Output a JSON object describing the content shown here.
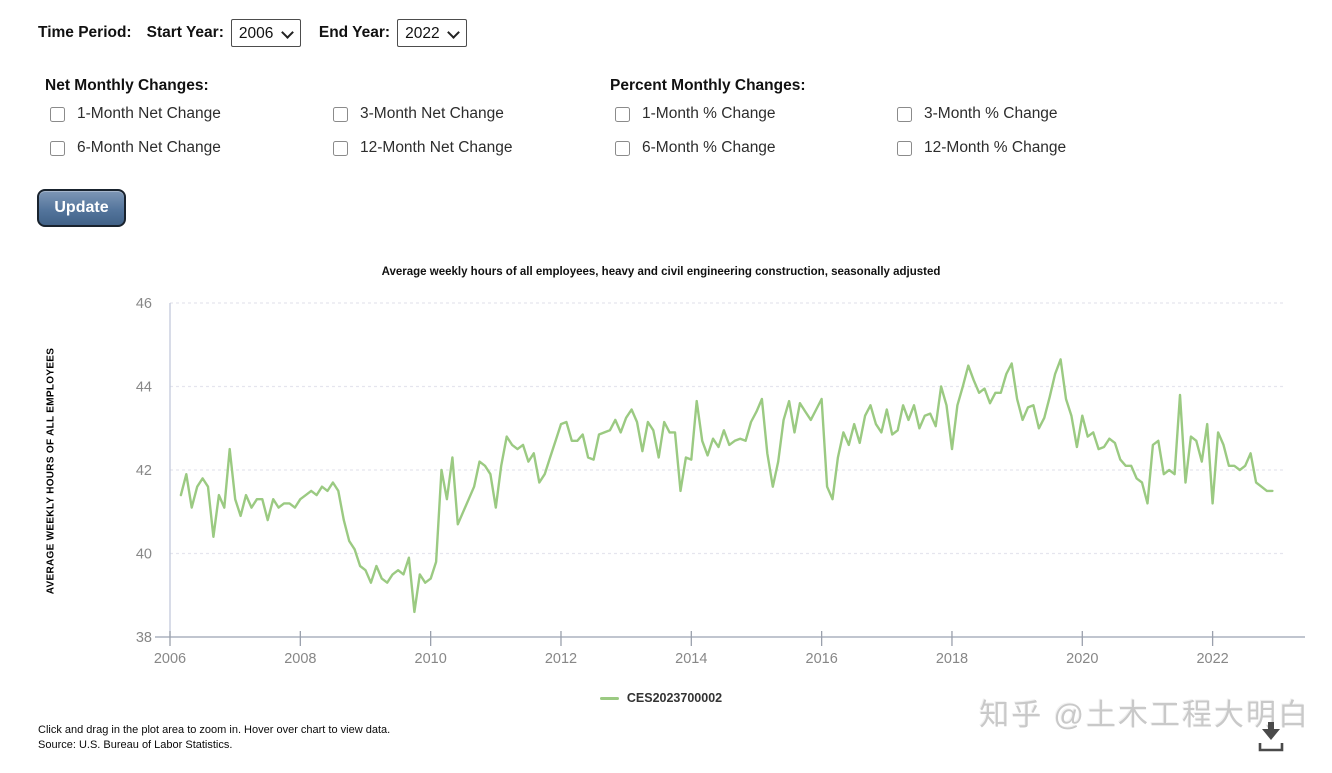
{
  "controls": {
    "time_period_label": "Time Period:",
    "start_year_label": "Start Year:",
    "start_year_value": "2006",
    "end_year_label": "End Year:",
    "end_year_value": "2022",
    "net_section_label": "Net Monthly Changes:",
    "percent_section_label": "Percent Monthly Changes:",
    "checkboxes": [
      {
        "label": "1-Month Net Change",
        "checked": false
      },
      {
        "label": "6-Month Net Change",
        "checked": false
      },
      {
        "label": "3-Month Net Change",
        "checked": false
      },
      {
        "label": "12-Month Net Change",
        "checked": false
      },
      {
        "label": "1-Month % Change",
        "checked": false
      },
      {
        "label": "6-Month % Change",
        "checked": false
      },
      {
        "label": "3-Month % Change",
        "checked": false
      },
      {
        "label": "12-Month % Change",
        "checked": false
      }
    ],
    "update_button_label": "Update"
  },
  "chart_data": {
    "type": "line",
    "title": "Average weekly hours of all employees, heavy and civil engineering construction, seasonally adjusted",
    "ylabel": "AVERAGE WEEKLY HOURS OF ALL EMPLOYEES",
    "series_name": "CES2023700002",
    "line_color": "#9bca82",
    "grid": true,
    "legend_position": "bottom-center",
    "ylim": [
      38,
      46
    ],
    "y_ticks": [
      46,
      44,
      42,
      40,
      38
    ],
    "x_ticks": [
      2006,
      2008,
      2010,
      2012,
      2014,
      2016,
      2018,
      2020,
      2022
    ],
    "x_range": [
      2006.0,
      2023.08
    ],
    "frequency": "monthly",
    "start_year": 2006,
    "start_month": 3,
    "end_year": 2022,
    "end_month": 12,
    "values": [
      41.4,
      41.9,
      41.1,
      41.6,
      41.8,
      41.6,
      40.4,
      41.4,
      41.1,
      42.5,
      41.3,
      40.9,
      41.4,
      41.1,
      41.3,
      41.3,
      40.8,
      41.3,
      41.1,
      41.2,
      41.2,
      41.1,
      41.3,
      41.4,
      41.5,
      41.4,
      41.6,
      41.5,
      41.7,
      41.5,
      40.8,
      40.3,
      40.1,
      39.7,
      39.6,
      39.3,
      39.7,
      39.4,
      39.3,
      39.5,
      39.6,
      39.5,
      39.9,
      38.6,
      39.5,
      39.3,
      39.4,
      39.8,
      42.0,
      41.3,
      42.3,
      40.7,
      41.0,
      41.3,
      41.6,
      42.2,
      42.1,
      41.9,
      41.1,
      42.1,
      42.8,
      42.6,
      42.5,
      42.6,
      42.2,
      42.4,
      41.7,
      41.9,
      42.3,
      42.7,
      43.1,
      43.15,
      42.7,
      42.7,
      42.85,
      42.3,
      42.25,
      42.85,
      42.9,
      42.95,
      43.2,
      42.9,
      43.25,
      43.45,
      43.15,
      42.45,
      43.15,
      42.95,
      42.3,
      43.15,
      42.9,
      42.9,
      41.5,
      42.3,
      42.25,
      43.65,
      42.7,
      42.35,
      42.75,
      42.55,
      42.95,
      42.6,
      42.7,
      42.75,
      42.7,
      43.15,
      43.4,
      43.7,
      42.4,
      41.6,
      42.2,
      43.2,
      43.65,
      42.9,
      43.6,
      43.4,
      43.2,
      43.45,
      43.7,
      41.6,
      41.3,
      42.3,
      42.9,
      42.6,
      43.1,
      42.65,
      43.3,
      43.55,
      43.1,
      42.9,
      43.45,
      42.85,
      42.95,
      43.55,
      43.2,
      43.55,
      43.0,
      43.3,
      43.35,
      43.05,
      44.0,
      43.55,
      42.5,
      43.55,
      44.0,
      44.5,
      44.15,
      43.85,
      43.95,
      43.6,
      43.85,
      43.85,
      44.3,
      44.55,
      43.7,
      43.2,
      43.5,
      43.55,
      43.0,
      43.25,
      43.75,
      44.3,
      44.65,
      43.7,
      43.3,
      42.55,
      43.3,
      42.8,
      42.9,
      42.5,
      42.55,
      42.75,
      42.65,
      42.25,
      42.1,
      42.1,
      41.8,
      41.7,
      41.2,
      42.6,
      42.7,
      41.9,
      42.0,
      41.9,
      43.8,
      41.7,
      42.8,
      42.7,
      42.2,
      43.1,
      41.2,
      42.9,
      42.6,
      42.1,
      42.1,
      42.0,
      42.1,
      42.4,
      41.7,
      41.6,
      41.5,
      41.5
    ]
  },
  "footer": {
    "hint": "Click and drag in the plot area to zoom in. Hover over chart to view data.",
    "source": "Source: U.S. Bureau of Labor Statistics.",
    "watermark": "知乎 @土木工程大明白"
  },
  "icons": {
    "select_chevron": "chevron-down-icon",
    "download": "download-icon"
  },
  "colors": {
    "series_line": "#9bca82",
    "button_top": "#7e97b6",
    "button_bottom": "#416288",
    "axis_line": "#c2cadb",
    "gridline": "#e5e5ee",
    "tick_label": "#878787"
  }
}
